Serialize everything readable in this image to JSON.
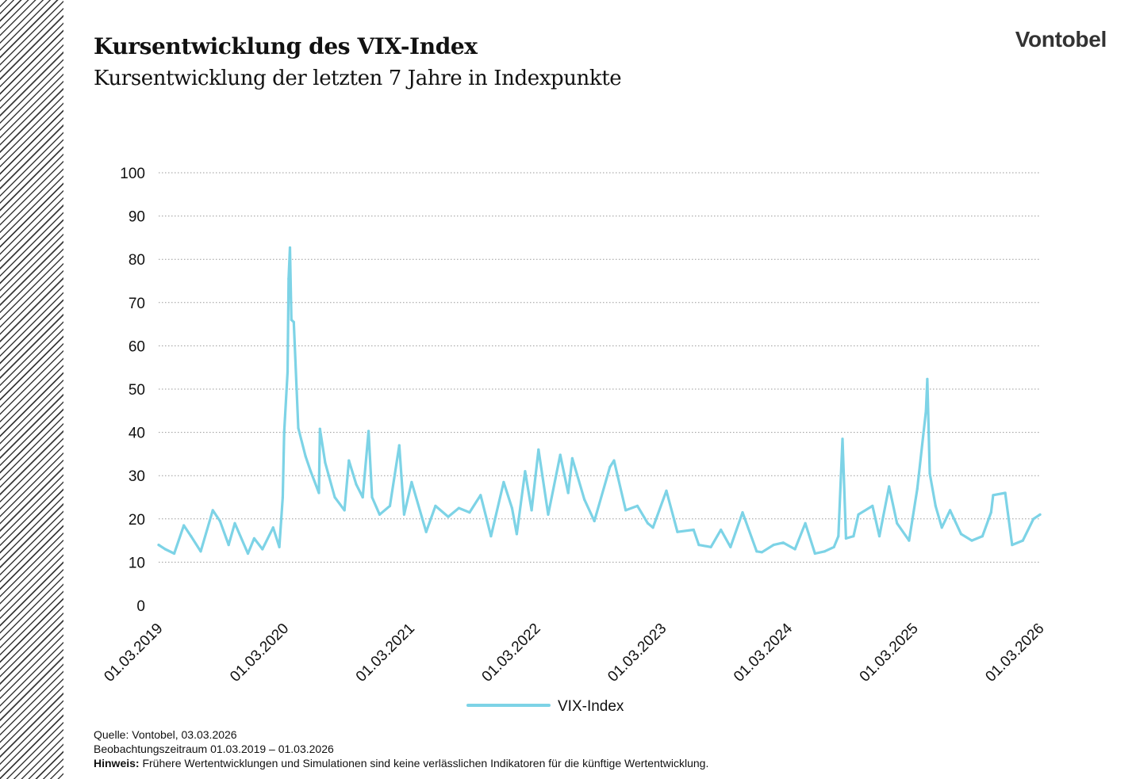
{
  "header": {
    "title": "Kursentwicklung des VIX-Index",
    "subtitle": "Kursentwicklung der letzten 7 Jahre in Indexpunkte",
    "logo": "Vontobel"
  },
  "footer": {
    "source": "Quelle: Vontobel, 03.03.2026",
    "period": "Beobachtungszeitraum  01.03.2019 – 01.03.2026",
    "note_label": "Hinweis:",
    "note_text": " Frühere Wertentwicklungen und Simulationen sind keine verlässlichen Indikatoren für die künftige Wertentwicklung."
  },
  "colors": {
    "series": "#7dd3e6",
    "grid": "#9a9a9a",
    "hatch": "#3a3a3a"
  },
  "chart_data": {
    "type": "line",
    "title": "Kursentwicklung des VIX-Index",
    "subtitle": "Kursentwicklung der letzten 7 Jahre in Indexpunkte",
    "xlabel": "",
    "ylabel": "",
    "ylim": [
      0,
      100
    ],
    "yticks": [
      0,
      10,
      20,
      30,
      40,
      50,
      60,
      70,
      80,
      90,
      100
    ],
    "xlim": [
      "2019-03-01",
      "2026-03-01"
    ],
    "xticks": [
      "01.03.2019",
      "01.03.2020",
      "01.03.2021",
      "01.03.2022",
      "01.03.2023",
      "01.03.2024",
      "01.03.2025",
      "01.03.2026"
    ],
    "grid": "horizontal dotted",
    "legend": "bottom-center",
    "series": [
      {
        "name": "VIX-Index",
        "color": "#7dd3e6",
        "x": [
          "2019-03-01",
          "2019-03-20",
          "2019-04-15",
          "2019-05-13",
          "2019-06-03",
          "2019-07-01",
          "2019-08-05",
          "2019-08-26",
          "2019-09-20",
          "2019-10-08",
          "2019-11-15",
          "2019-12-03",
          "2019-12-27",
          "2020-01-27",
          "2020-02-14",
          "2020-02-24",
          "2020-02-28",
          "2020-03-09",
          "2020-03-12",
          "2020-03-16",
          "2020-03-20",
          "2020-03-27",
          "2020-04-09",
          "2020-04-30",
          "2020-05-15",
          "2020-06-08",
          "2020-06-11",
          "2020-06-26",
          "2020-07-24",
          "2020-08-21",
          "2020-09-03",
          "2020-09-24",
          "2020-10-13",
          "2020-10-30",
          "2020-11-09",
          "2020-12-01",
          "2020-12-31",
          "2021-01-27",
          "2021-02-10",
          "2021-03-04",
          "2021-04-15",
          "2021-05-12",
          "2021-06-18",
          "2021-07-19",
          "2021-08-19",
          "2021-09-20",
          "2021-10-20",
          "2021-11-26",
          "2021-12-20",
          "2022-01-03",
          "2022-01-27",
          "2022-02-15",
          "2022-03-07",
          "2022-04-04",
          "2022-05-09",
          "2022-06-01",
          "2022-06-13",
          "2022-07-18",
          "2022-08-16",
          "2022-09-30",
          "2022-10-12",
          "2022-11-15",
          "2022-12-19",
          "2023-01-18",
          "2023-02-02",
          "2023-03-13",
          "2023-04-14",
          "2023-05-31",
          "2023-06-15",
          "2023-07-20",
          "2023-08-18",
          "2023-09-15",
          "2023-10-20",
          "2023-11-30",
          "2023-12-15",
          "2024-01-18",
          "2024-02-15",
          "2024-03-20",
          "2024-04-19",
          "2024-05-17",
          "2024-06-14",
          "2024-07-11",
          "2024-07-24",
          "2024-08-05",
          "2024-08-15",
          "2024-09-06",
          "2024-09-20",
          "2024-10-31",
          "2024-11-20",
          "2024-12-18",
          "2025-01-10",
          "2025-02-14",
          "2025-03-10",
          "2025-04-04",
          "2025-04-08",
          "2025-04-15",
          "2025-05-02",
          "2025-05-20",
          "2025-06-13",
          "2025-07-15",
          "2025-08-15",
          "2025-09-15",
          "2025-10-10",
          "2025-10-16",
          "2025-11-20",
          "2025-12-10",
          "2026-01-10",
          "2026-02-10",
          "2026-03-01"
        ],
        "values": [
          14.0,
          13.0,
          12.0,
          18.5,
          16.0,
          12.5,
          22.0,
          19.5,
          14.0,
          19.0,
          12.0,
          15.5,
          13.0,
          18.0,
          13.5,
          25.0,
          40.0,
          54.0,
          75.5,
          82.7,
          66.0,
          65.5,
          41.0,
          34.5,
          31.0,
          26.0,
          40.8,
          33.0,
          25.0,
          22.0,
          33.5,
          28.0,
          25.0,
          40.3,
          25.0,
          21.0,
          23.0,
          37.0,
          21.0,
          28.5,
          17.0,
          23.0,
          20.5,
          22.5,
          21.5,
          25.5,
          16.0,
          28.5,
          22.5,
          16.5,
          31.0,
          22.0,
          36.0,
          21.0,
          34.8,
          26.0,
          34.0,
          24.5,
          19.5,
          32.0,
          33.5,
          22.0,
          23.0,
          19.0,
          18.0,
          26.5,
          17.0,
          17.5,
          14.0,
          13.5,
          17.5,
          13.5,
          21.5,
          12.5,
          12.3,
          14.0,
          14.5,
          13.0,
          19.0,
          12.0,
          12.5,
          13.5,
          16.0,
          38.5,
          15.5,
          16.0,
          21.0,
          23.0,
          16.0,
          27.5,
          19.0,
          15.0,
          27.0,
          45.0,
          52.3,
          30.5,
          23.0,
          18.0,
          22.0,
          16.5,
          15.0,
          16.0,
          21.5,
          25.5,
          26.0,
          14.0,
          15.0,
          20.0,
          21.0
        ]
      }
    ]
  }
}
